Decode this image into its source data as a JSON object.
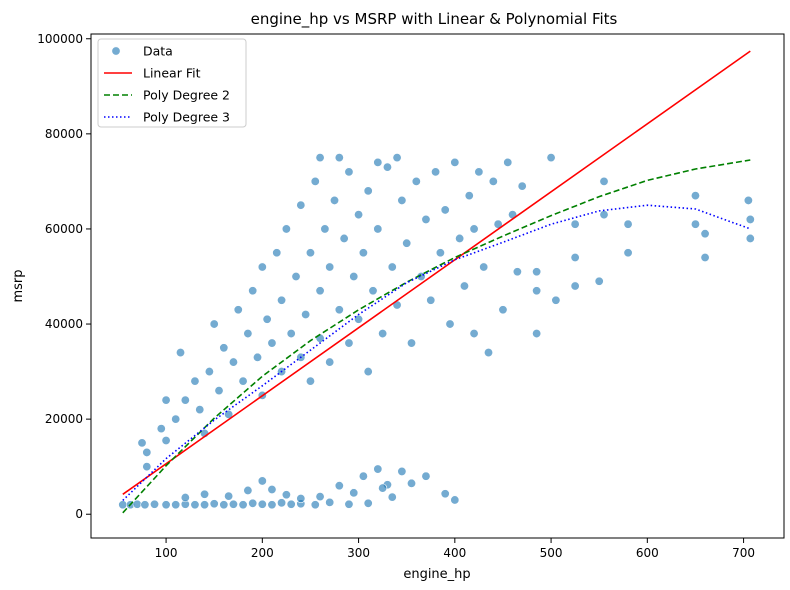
{
  "chart_data": {
    "type": "scatter",
    "title": "engine_hp vs MSRP with Linear & Polynomial Fits",
    "xlabel": "engine_hp",
    "ylabel": "msrp",
    "xlim": [
      22,
      742
    ],
    "ylim": [
      -5000,
      101000
    ],
    "x_ticks": [
      100,
      200,
      300,
      400,
      500,
      600,
      700
    ],
    "y_ticks": [
      0,
      20000,
      40000,
      60000,
      80000,
      100000
    ],
    "legend_position": "top-left",
    "grid": false,
    "series": [
      {
        "name": "Data",
        "kind": "scatter",
        "color": "#1f77b4",
        "note_points": [
          [
            55,
            2000
          ],
          [
            63,
            2000
          ],
          [
            70,
            2100
          ],
          [
            78,
            2000
          ],
          [
            88,
            2100
          ],
          [
            100,
            2000
          ],
          [
            110,
            2000
          ],
          [
            120,
            2100
          ],
          [
            130,
            2000
          ],
          [
            140,
            2000
          ],
          [
            150,
            2200
          ],
          [
            160,
            2000
          ],
          [
            170,
            2100
          ],
          [
            180,
            2000
          ],
          [
            190,
            2300
          ],
          [
            200,
            2100
          ],
          [
            210,
            2000
          ],
          [
            220,
            2400
          ],
          [
            230,
            2100
          ],
          [
            240,
            2200
          ],
          [
            255,
            2000
          ],
          [
            270,
            2500
          ],
          [
            290,
            2100
          ],
          [
            310,
            2300
          ],
          [
            120,
            3500
          ],
          [
            140,
            4200
          ],
          [
            165,
            3800
          ],
          [
            185,
            5000
          ],
          [
            200,
            7000
          ],
          [
            210,
            5200
          ],
          [
            225,
            4100
          ],
          [
            240,
            3300
          ],
          [
            260,
            3700
          ],
          [
            280,
            6000
          ],
          [
            295,
            4500
          ],
          [
            305,
            8000
          ],
          [
            320,
            9500
          ],
          [
            330,
            6200
          ],
          [
            345,
            9000
          ],
          [
            355,
            6500
          ],
          [
            370,
            8000
          ],
          [
            390,
            4300
          ],
          [
            400,
            3000
          ],
          [
            335,
            3600
          ],
          [
            325,
            5500
          ],
          [
            75,
            15000
          ],
          [
            80,
            13000
          ],
          [
            80,
            10000
          ],
          [
            95,
            18000
          ],
          [
            100,
            15500
          ],
          [
            100,
            24000
          ],
          [
            110,
            20000
          ],
          [
            115,
            34000
          ],
          [
            120,
            24000
          ],
          [
            130,
            28000
          ],
          [
            135,
            22000
          ],
          [
            140,
            17000
          ],
          [
            145,
            30000
          ],
          [
            150,
            40000
          ],
          [
            155,
            26000
          ],
          [
            160,
            35000
          ],
          [
            165,
            21000
          ],
          [
            170,
            32000
          ],
          [
            175,
            43000
          ],
          [
            180,
            28000
          ],
          [
            185,
            38000
          ],
          [
            190,
            47000
          ],
          [
            195,
            33000
          ],
          [
            200,
            25000
          ],
          [
            200,
            52000
          ],
          [
            205,
            41000
          ],
          [
            210,
            36000
          ],
          [
            215,
            55000
          ],
          [
            220,
            30000
          ],
          [
            220,
            45000
          ],
          [
            225,
            60000
          ],
          [
            230,
            38000
          ],
          [
            235,
            50000
          ],
          [
            240,
            33000
          ],
          [
            240,
            65000
          ],
          [
            245,
            42000
          ],
          [
            250,
            55000
          ],
          [
            250,
            28000
          ],
          [
            255,
            70000
          ],
          [
            260,
            47000
          ],
          [
            260,
            37000
          ],
          [
            265,
            60000
          ],
          [
            270,
            32000
          ],
          [
            270,
            52000
          ],
          [
            275,
            66000
          ],
          [
            280,
            43000
          ],
          [
            285,
            58000
          ],
          [
            290,
            36000
          ],
          [
            290,
            72000
          ],
          [
            295,
            50000
          ],
          [
            300,
            41000
          ],
          [
            300,
            63000
          ],
          [
            305,
            55000
          ],
          [
            310,
            30000
          ],
          [
            310,
            68000
          ],
          [
            315,
            47000
          ],
          [
            320,
            60000
          ],
          [
            325,
            38000
          ],
          [
            330,
            73000
          ],
          [
            335,
            52000
          ],
          [
            340,
            44000
          ],
          [
            345,
            66000
          ],
          [
            350,
            57000
          ],
          [
            355,
            36000
          ],
          [
            360,
            70000
          ],
          [
            365,
            50000
          ],
          [
            370,
            62000
          ],
          [
            375,
            45000
          ],
          [
            380,
            72000
          ],
          [
            385,
            55000
          ],
          [
            390,
            64000
          ],
          [
            395,
            40000
          ],
          [
            400,
            74000
          ],
          [
            405,
            58000
          ],
          [
            410,
            48000
          ],
          [
            415,
            67000
          ],
          [
            420,
            38000
          ],
          [
            420,
            60000
          ],
          [
            425,
            72000
          ],
          [
            430,
            52000
          ],
          [
            435,
            34000
          ],
          [
            440,
            70000
          ],
          [
            445,
            61000
          ],
          [
            450,
            43000
          ],
          [
            455,
            74000
          ],
          [
            460,
            63000
          ],
          [
            465,
            51000
          ],
          [
            470,
            69000
          ],
          [
            280,
            75000
          ],
          [
            320,
            74000
          ],
          [
            340,
            75000
          ],
          [
            260,
            75000
          ],
          [
            485,
            51000
          ],
          [
            485,
            47000
          ],
          [
            485,
            38000
          ],
          [
            500,
            75000
          ],
          [
            505,
            45000
          ],
          [
            525,
            61000
          ],
          [
            525,
            54000
          ],
          [
            525,
            48000
          ],
          [
            550,
            49000
          ],
          [
            555,
            70000
          ],
          [
            555,
            63000
          ],
          [
            580,
            55000
          ],
          [
            580,
            61000
          ],
          [
            650,
            67000
          ],
          [
            650,
            61000
          ],
          [
            660,
            54000
          ],
          [
            660,
            59000
          ],
          [
            705,
            66000
          ],
          [
            707,
            62000
          ],
          [
            707,
            58000
          ]
        ]
      },
      {
        "name": "Linear Fit",
        "kind": "line",
        "style": "solid",
        "color": "#ff0000",
        "x": [
          55,
          707
        ],
        "y": [
          4200,
          97400
        ]
      },
      {
        "name": "Poly Degree 2",
        "kind": "line",
        "style": "dashed",
        "color": "#008000",
        "x": [
          55,
          100,
          150,
          200,
          250,
          300,
          350,
          400,
          450,
          500,
          550,
          600,
          650,
          707
        ],
        "y": [
          300,
          10200,
          20200,
          29000,
          36500,
          43000,
          48800,
          54000,
          58500,
          62800,
          66800,
          70200,
          72600,
          74500
        ]
      },
      {
        "name": "Poly Degree 3",
        "kind": "line",
        "style": "dotted",
        "color": "#0000ff",
        "x": [
          55,
          100,
          150,
          200,
          250,
          300,
          350,
          400,
          450,
          500,
          550,
          600,
          650,
          707
        ],
        "y": [
          2900,
          11700,
          19800,
          27000,
          34500,
          42000,
          48700,
          53500,
          57200,
          61000,
          63800,
          65000,
          64200,
          60000
        ]
      }
    ]
  }
}
